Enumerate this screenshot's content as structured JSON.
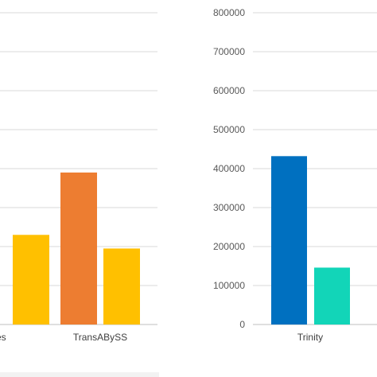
{
  "chart_data": [
    {
      "type": "bar",
      "categories": [
        "...des",
        "TransABySS"
      ],
      "category_labels": [
        "des",
        "TransABySS"
      ],
      "series": [
        {
          "color": "#ED7D31",
          "values": [
            null,
            390000
          ]
        },
        {
          "color": "#FFC000",
          "values": [
            230000,
            195000
          ]
        }
      ],
      "ylim": [
        0,
        800000
      ],
      "grid": true,
      "note": "left panel is cropped; its y-axis tick labels are not visible"
    },
    {
      "type": "bar",
      "categories": [
        "Trinity"
      ],
      "series": [
        {
          "color": "#0070C0",
          "values": [
            432000
          ]
        },
        {
          "color": "#12D5B8",
          "values": [
            146000
          ]
        }
      ],
      "ylim": [
        0,
        800000
      ],
      "yticks": [
        "0",
        "100000",
        "200000",
        "300000",
        "400000",
        "500000",
        "600000",
        "700000",
        "800000"
      ],
      "grid": true
    }
  ]
}
